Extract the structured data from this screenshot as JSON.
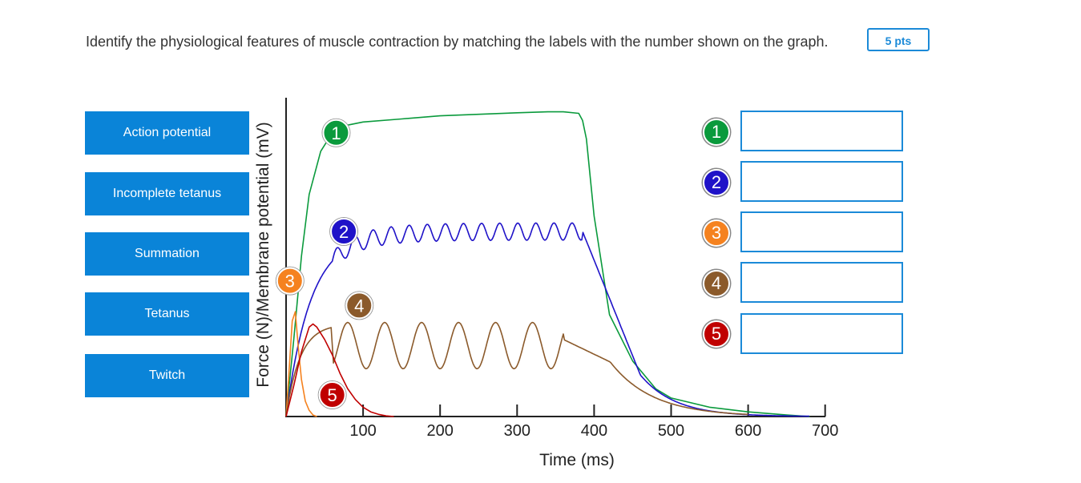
{
  "question": {
    "text": "Identify the physiological features of muscle contraction by matching the labels with the number shown on the graph.",
    "points": "5 pts"
  },
  "labels": [
    "Action potential",
    "Incomplete tetanus",
    "Summation",
    "Tetanus",
    "Twitch"
  ],
  "answer_key": [
    {
      "number": "1",
      "color": "#0a9a3c"
    },
    {
      "number": "2",
      "color": "#1f12c8"
    },
    {
      "number": "3",
      "color": "#f5821f"
    },
    {
      "number": "4",
      "color": "#8b5a2b"
    },
    {
      "number": "5",
      "color": "#c00000"
    }
  ],
  "chart_data": {
    "type": "line",
    "title": "",
    "xlabel": "Time (ms)",
    "ylabel": "Force (N)/Membrane potential (mV)",
    "xlim": [
      0,
      700
    ],
    "ylim": [
      0,
      100
    ],
    "xticks": [
      100,
      200,
      300,
      400,
      500,
      600,
      700
    ],
    "xtick_labels": [
      "100",
      "200",
      "300",
      "400",
      "500",
      "600",
      "700"
    ],
    "grid": false,
    "series": [
      {
        "marker": "1",
        "color": "#0a9a3c",
        "x": [
          0,
          10,
          20,
          30,
          45,
          60,
          80,
          100,
          150,
          200,
          250,
          300,
          340,
          360,
          380,
          385,
          390,
          400,
          420,
          450,
          480,
          500,
          550,
          600,
          650,
          680
        ],
        "y": [
          0,
          25,
          52,
          72,
          86,
          92,
          94.5,
          95.5,
          96.5,
          97.5,
          98,
          98.5,
          98.8,
          98.8,
          98.3,
          96,
          90,
          65,
          33,
          18,
          9,
          6,
          3,
          1.5,
          0.5,
          0
        ]
      },
      {
        "marker": "2",
        "color": "#1f12c8",
        "x": [],
        "y": []
      },
      {
        "marker": "3",
        "color": "#f5821f",
        "x": [
          0,
          4,
          8,
          12,
          16,
          20,
          25,
          30,
          35,
          40
        ],
        "y": [
          0,
          15,
          31,
          34,
          22,
          12,
          5,
          2,
          0.5,
          0
        ]
      },
      {
        "marker": "4",
        "color": "#8b5a2b",
        "x": [],
        "y": []
      },
      {
        "marker": "5",
        "color": "#c00000",
        "x": [
          0,
          10,
          20,
          30,
          35,
          40,
          50,
          60,
          70,
          80,
          90,
          100,
          110,
          120,
          130,
          140
        ],
        "y": [
          0,
          10,
          21,
          29,
          30,
          29,
          25,
          20,
          14,
          9,
          5.5,
          3,
          1.5,
          0.7,
          0.2,
          0
        ]
      }
    ],
    "markers": [
      {
        "number": "1",
        "color": "#0a9a3c",
        "x": 65,
        "y": 92
      },
      {
        "number": "2",
        "color": "#1f12c8",
        "x": 75,
        "y": 60
      },
      {
        "number": "3",
        "color": "#f5821f",
        "x": 5,
        "y": 44
      },
      {
        "number": "4",
        "color": "#8b5a2b",
        "x": 95,
        "y": 36
      },
      {
        "number": "5",
        "color": "#c00000",
        "x": 60,
        "y": 7
      }
    ]
  }
}
